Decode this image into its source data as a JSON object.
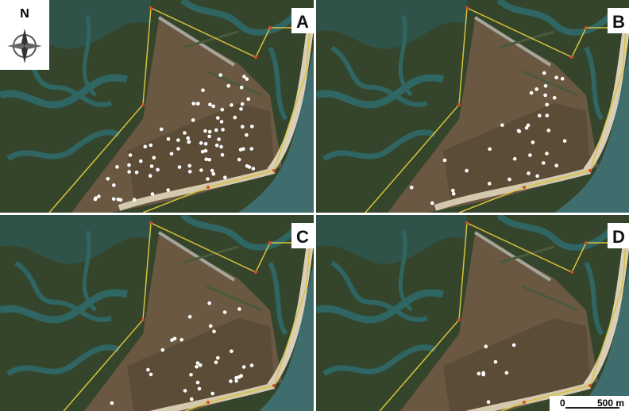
{
  "panels": [
    {
      "label": "A"
    },
    {
      "label": "B"
    },
    {
      "label": "C"
    },
    {
      "label": "D"
    }
  ],
  "compass": {
    "label": "N"
  },
  "scale_bar": {
    "start": "0",
    "end": "500 m"
  }
}
